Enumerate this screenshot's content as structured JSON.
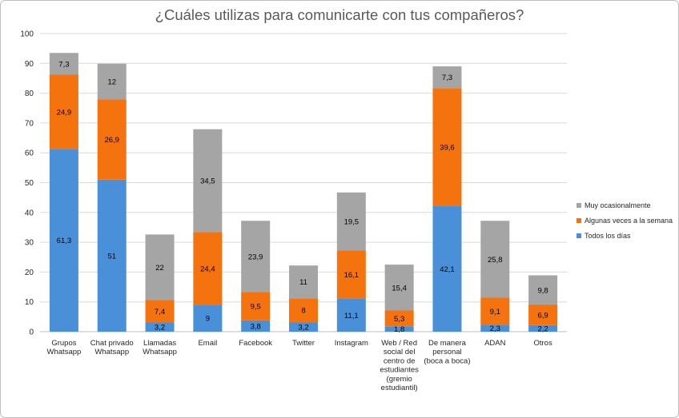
{
  "chart_data": {
    "type": "bar",
    "stacked": true,
    "title": "¿Cuáles utilizas para comunicarte con tus compañeros?",
    "categories": [
      "Grupos Whatsapp",
      "Chat privado Whatsapp",
      "Llamadas Whatsapp",
      "Email",
      "Facebook",
      "Twitter",
      "Instagram",
      "Web / Red social del centro de estudiantes (gremio estudiantil)",
      "De manera personal (boca a boca)",
      "ADAN",
      "Otros"
    ],
    "category_lines": [
      [
        "Grupos",
        "Whatsapp"
      ],
      [
        "Chat privado",
        "Whatsapp"
      ],
      [
        "Llamadas",
        "Whatsapp"
      ],
      [
        "Email"
      ],
      [
        "Facebook"
      ],
      [
        "Twitter"
      ],
      [
        "Instagram"
      ],
      [
        "Web / Red",
        "social del",
        "centro de",
        "estudiantes",
        "(gremio",
        "estudiantil)"
      ],
      [
        "De manera",
        "personal",
        "(boca a boca)"
      ],
      [
        "ADAN"
      ],
      [
        "Otros"
      ]
    ],
    "series": [
      {
        "name": "Todos los días",
        "color": "#4a90d9",
        "values": [
          61.3,
          51,
          3.2,
          9,
          3.8,
          3.2,
          11.1,
          1.8,
          42.1,
          2.3,
          2.2
        ],
        "labels": [
          "61,3",
          "51",
          "3,2",
          "9",
          "3,8",
          "3,2",
          "11,1",
          "1,8",
          "42,1",
          "2,3",
          "2,2"
        ]
      },
      {
        "name": "Algunas veces a la semana",
        "color": "#f5730f",
        "values": [
          24.9,
          26.9,
          7.4,
          24.4,
          9.5,
          8,
          16.1,
          5.3,
          39.6,
          9.1,
          6.9
        ],
        "labels": [
          "24,9",
          "26,9",
          "7,4",
          "24,4",
          "9,5",
          "8",
          "16,1",
          "5,3",
          "39,6",
          "9,1",
          "6,9"
        ]
      },
      {
        "name": "Muy ocasionalmente",
        "color": "#a5a5a5",
        "values": [
          7.3,
          12,
          22,
          34.5,
          23.9,
          11,
          19.5,
          15.4,
          7.3,
          25.8,
          9.8
        ],
        "labels": [
          "7,3",
          "12",
          "22",
          "34,5",
          "23,9",
          "11",
          "19,5",
          "15,4",
          "7,3",
          "25,8",
          "9,8"
        ]
      }
    ],
    "ylim": [
      0,
      100
    ],
    "yticks": [
      "0",
      "10",
      "20",
      "30",
      "40",
      "50",
      "60",
      "70",
      "80",
      "90",
      "100"
    ],
    "grid": true,
    "legend_position": "right"
  }
}
